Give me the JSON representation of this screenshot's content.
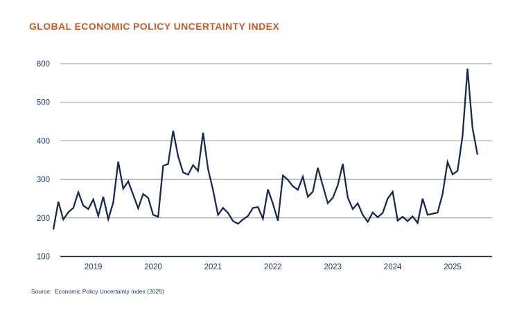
{
  "title": "GLOBAL ECONOMIC POLICY UNCERTAINTY INDEX",
  "source": "Source:  Economic Policy Uncertainty Index (2025)",
  "colors": {
    "background": "#FFFFFF",
    "title": "#C25E2E",
    "line": "#172A50",
    "axis_labels": "#1F3864",
    "gridline": "#909090",
    "axis_line": "#172A50"
  },
  "chart_data": {
    "type": "line",
    "title": "GLOBAL ECONOMIC POLICY UNCERTAINTY INDEX",
    "frequency": "monthly",
    "x_start": "2018-05",
    "x_end": "2025-06",
    "x_tick_labels": [
      "2019",
      "2020",
      "2021",
      "2022",
      "2023",
      "2024",
      "2025"
    ],
    "y_ticks": [
      100,
      200,
      300,
      400,
      500,
      600
    ],
    "ylim": [
      100,
      600
    ],
    "grid": "horizontal",
    "legend": "none",
    "series": [
      {
        "name": "Global Economic Policy Uncertainty Index",
        "values": [
          170,
          242,
          196,
          215,
          226,
          267,
          232,
          223,
          248,
          205,
          255,
          197,
          240,
          346,
          276,
          295,
          260,
          225,
          262,
          252,
          208,
          203,
          335,
          340,
          426,
          360,
          318,
          312,
          337,
          322,
          421,
          327,
          272,
          208,
          226,
          213,
          192,
          185,
          196,
          205,
          226,
          228,
          198,
          274,
          237,
          193,
          310,
          299,
          282,
          273,
          307,
          255,
          268,
          330,
          284,
          238,
          252,
          285,
          340,
          253,
          223,
          238,
          208,
          190,
          214,
          202,
          213,
          250,
          268,
          193,
          203,
          192,
          204,
          187,
          250,
          208,
          211,
          214,
          262,
          345,
          313,
          322,
          412,
          587,
          433,
          364
        ]
      }
    ]
  },
  "layout_values": {
    "first_year_label_month_index": 8,
    "months_per_label": 12
  }
}
